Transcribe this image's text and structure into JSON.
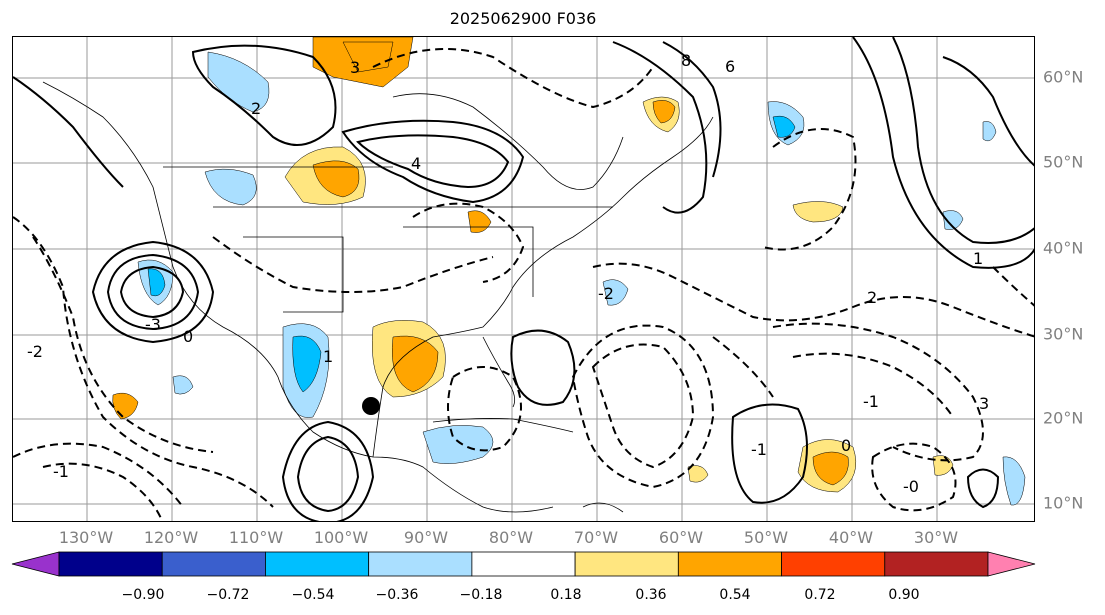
{
  "title": "2025062900 F036",
  "longitude_labels": [
    "130°W",
    "120°W",
    "110°W",
    "100°W",
    "90°W",
    "80°W",
    "70°W",
    "60°W",
    "50°W",
    "40°W",
    "30°W"
  ],
  "latitude_labels": [
    "60°N",
    "50°N",
    "40°N",
    "30°N",
    "20°N",
    "10°N"
  ],
  "contour_labels": [
    "-1",
    "-2",
    "-3",
    "0",
    "1",
    "2",
    "3",
    "4",
    "6",
    "8",
    "-0",
    "-1",
    "2",
    "3",
    "-2",
    "1",
    "-1",
    "0"
  ],
  "colorbar": {
    "ticks": [
      "−0.90",
      "−0.72",
      "−0.54",
      "−0.36",
      "−0.18",
      "0.18",
      "0.36",
      "0.54",
      "0.72",
      "0.90"
    ],
    "colors": [
      "#9932cc",
      "#00008b",
      "#3a5fcd",
      "#00bfff",
      "#aadfff",
      "#ffffff",
      "#ffe680",
      "#ffa500",
      "#ff4000",
      "#b22222",
      "#ff80b0"
    ]
  },
  "marker": "storm-position-dot"
}
